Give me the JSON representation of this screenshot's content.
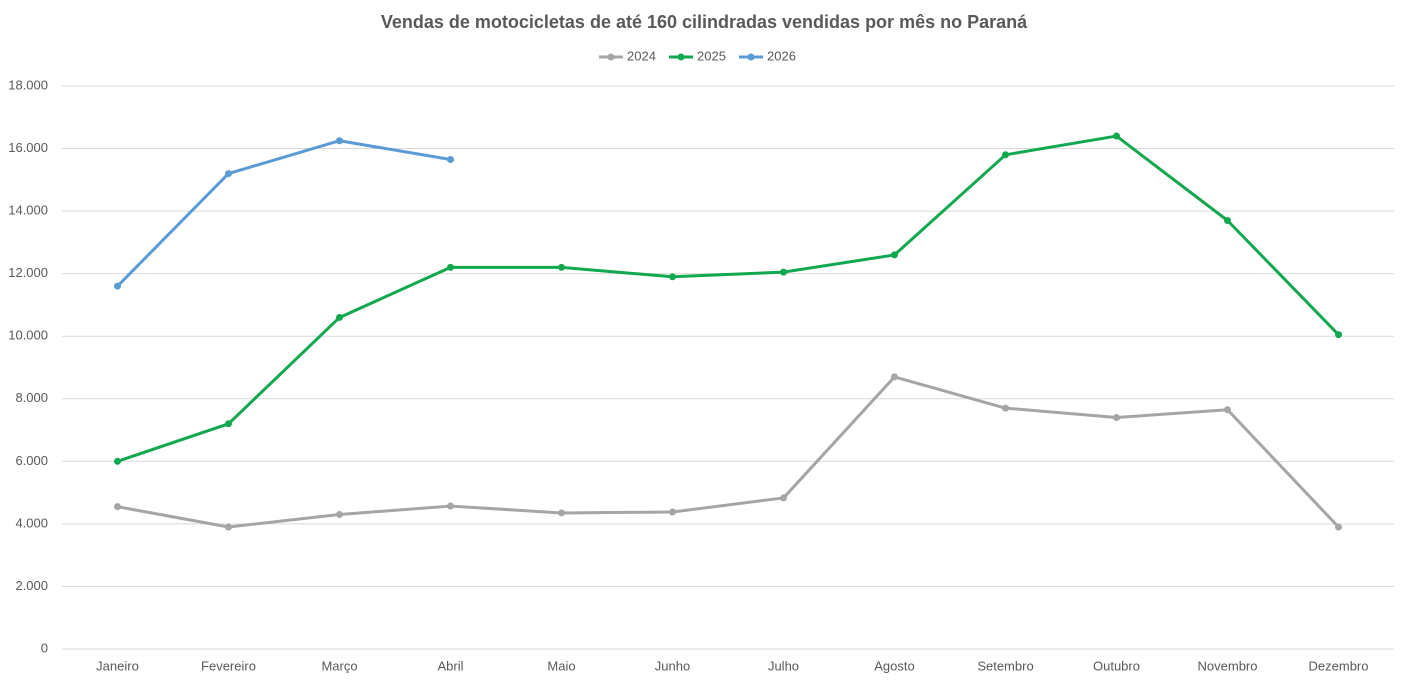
{
  "chart_data": {
    "type": "line",
    "title": "Vendas de motocicletas de até 160 cilindradas vendidas por mês no Paraná",
    "categories": [
      "Janeiro",
      "Fevereiro",
      "Março",
      "Abril",
      "Maio",
      "Junho",
      "Julho",
      "Agosto",
      "Setembro",
      "Outubro",
      "Novembro",
      "Dezembro"
    ],
    "series": [
      {
        "name": "2024",
        "color": "#a5a5a5",
        "values": [
          4550,
          3900,
          4300,
          4570,
          4350,
          4380,
          4830,
          8700,
          7700,
          7400,
          7650,
          3900
        ]
      },
      {
        "name": "2025",
        "color": "#11a84f",
        "values": [
          6000,
          7200,
          10600,
          12200,
          12200,
          11900,
          12050,
          12600,
          15800,
          16400,
          13700,
          10050
        ]
      },
      {
        "name": "2026",
        "color": "#5b9bd5",
        "values": [
          11600,
          15200,
          16250,
          15650,
          null,
          null,
          null,
          null,
          null,
          null,
          null,
          null
        ]
      }
    ],
    "ylim": [
      0,
      18000
    ],
    "yticks": [
      0,
      {
        "value": 2000,
        "label": "2.000"
      },
      {
        "value": 4000,
        "label": "4.000"
      },
      {
        "value": 6000,
        "label": "6.000"
      },
      {
        "value": 8000,
        "label": "8.000"
      },
      {
        "value": 10000,
        "label": "10.000"
      },
      {
        "value": 12000,
        "label": "12.000"
      },
      {
        "value": 14000,
        "label": "14.000"
      },
      {
        "value": 16000,
        "label": "16.000"
      },
      {
        "value": 18000,
        "label": "18.000"
      }
    ],
    "grid": true,
    "legend": "top"
  }
}
